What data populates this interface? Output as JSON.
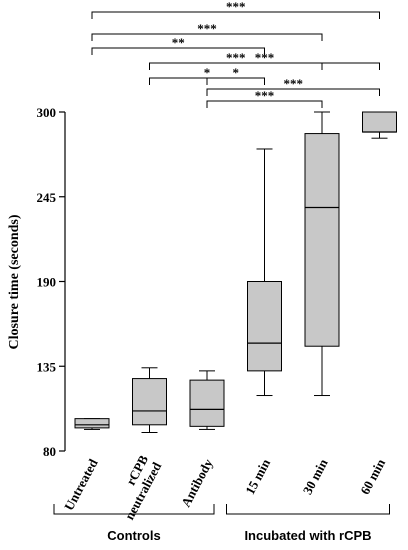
{
  "chart_data": {
    "type": "box",
    "ylabel": "Closure time (seconds)",
    "ylim": [
      80,
      300
    ],
    "yticks": [
      80,
      135,
      190,
      245,
      300
    ],
    "colors": {
      "box_fill": "#c8c8c8",
      "stroke": "#000000"
    },
    "categories": [
      "Untreated",
      "rCPB neutralized",
      "Antibody",
      "15 min",
      "30 min",
      "60 min"
    ],
    "boxes": [
      {
        "category": "Untreated",
        "whisker_low": 94,
        "q1": 95,
        "median": 97,
        "q3": 101,
        "whisker_high": 101
      },
      {
        "category": "rCPB neutralized",
        "whisker_low": 92,
        "q1": 97,
        "median": 106,
        "q3": 127,
        "whisker_high": 134
      },
      {
        "category": "Antibody",
        "whisker_low": 94,
        "q1": 96,
        "median": 107,
        "q3": 126,
        "whisker_high": 132
      },
      {
        "category": "15 min",
        "whisker_low": 116,
        "q1": 132,
        "median": 150,
        "q3": 190,
        "whisker_high": 276
      },
      {
        "category": "30 min",
        "whisker_low": 116,
        "q1": 148,
        "median": 238,
        "q3": 286,
        "whisker_high": 300
      },
      {
        "category": "60 min",
        "whisker_low": 283,
        "q1": 287,
        "median": 287,
        "q3": 300,
        "whisker_high": 300
      }
    ],
    "groups": [
      {
        "label": "Controls",
        "from": 0,
        "to": 2
      },
      {
        "label": "Incubated with rCPB",
        "from": 3,
        "to": 5
      }
    ],
    "significance": [
      {
        "from": 0,
        "to": 5,
        "label": "***"
      },
      {
        "from": 0,
        "to": 4,
        "label": "***"
      },
      {
        "from": 0,
        "to": 3,
        "label": "**"
      },
      {
        "from": 1,
        "to": 5,
        "label": "***"
      },
      {
        "from": 1,
        "to": 3,
        "label": "*"
      },
      {
        "from": 1,
        "to": 4,
        "label": "***"
      },
      {
        "from": 2,
        "to": 5,
        "label": "***"
      },
      {
        "from": 2,
        "to": 4,
        "label": "***"
      },
      {
        "from": 2,
        "to": 3,
        "label": "*"
      }
    ]
  }
}
